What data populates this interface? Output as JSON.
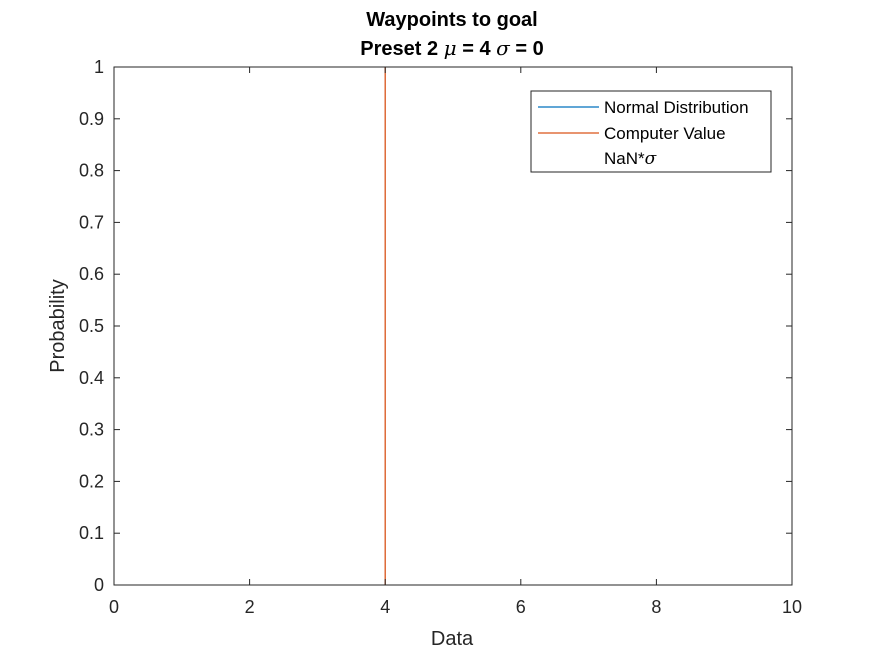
{
  "chart_data": {
    "type": "line",
    "title": "Waypoints to goal",
    "subtitle_prefix": "Preset 2 ",
    "subtitle_mu_symbol": "μ",
    "subtitle_mu_text": " = 4 ",
    "subtitle_sigma_symbol": "σ",
    "subtitle_sigma_text": " = 0",
    "xlabel": "Data",
    "ylabel": "Probability",
    "xlim": [
      0,
      10
    ],
    "ylim": [
      0,
      1
    ],
    "xticks": [
      0,
      2,
      4,
      6,
      8,
      10
    ],
    "xtick_labels": [
      "0",
      "2",
      "4",
      "6",
      "8",
      "10"
    ],
    "yticks": [
      0,
      0.1,
      0.2,
      0.3,
      0.4,
      0.5,
      0.6,
      0.7,
      0.8,
      0.9,
      1
    ],
    "ytick_labels": [
      "0",
      "0.1",
      "0.2",
      "0.3",
      "0.4",
      "0.5",
      "0.6",
      "0.7",
      "0.8",
      "0.9",
      "1"
    ],
    "grid": false,
    "legend_position": "top-right",
    "series": [
      {
        "name": "Normal Distribution",
        "color": "#0072BD",
        "x": [],
        "y": []
      },
      {
        "name": "Computer Value",
        "color": "#D95319",
        "x": [
          4,
          4
        ],
        "y": [
          0,
          1
        ]
      },
      {
        "name": "NaN*",
        "name_symbol": "σ",
        "color": "",
        "x": [],
        "y": []
      }
    ]
  }
}
